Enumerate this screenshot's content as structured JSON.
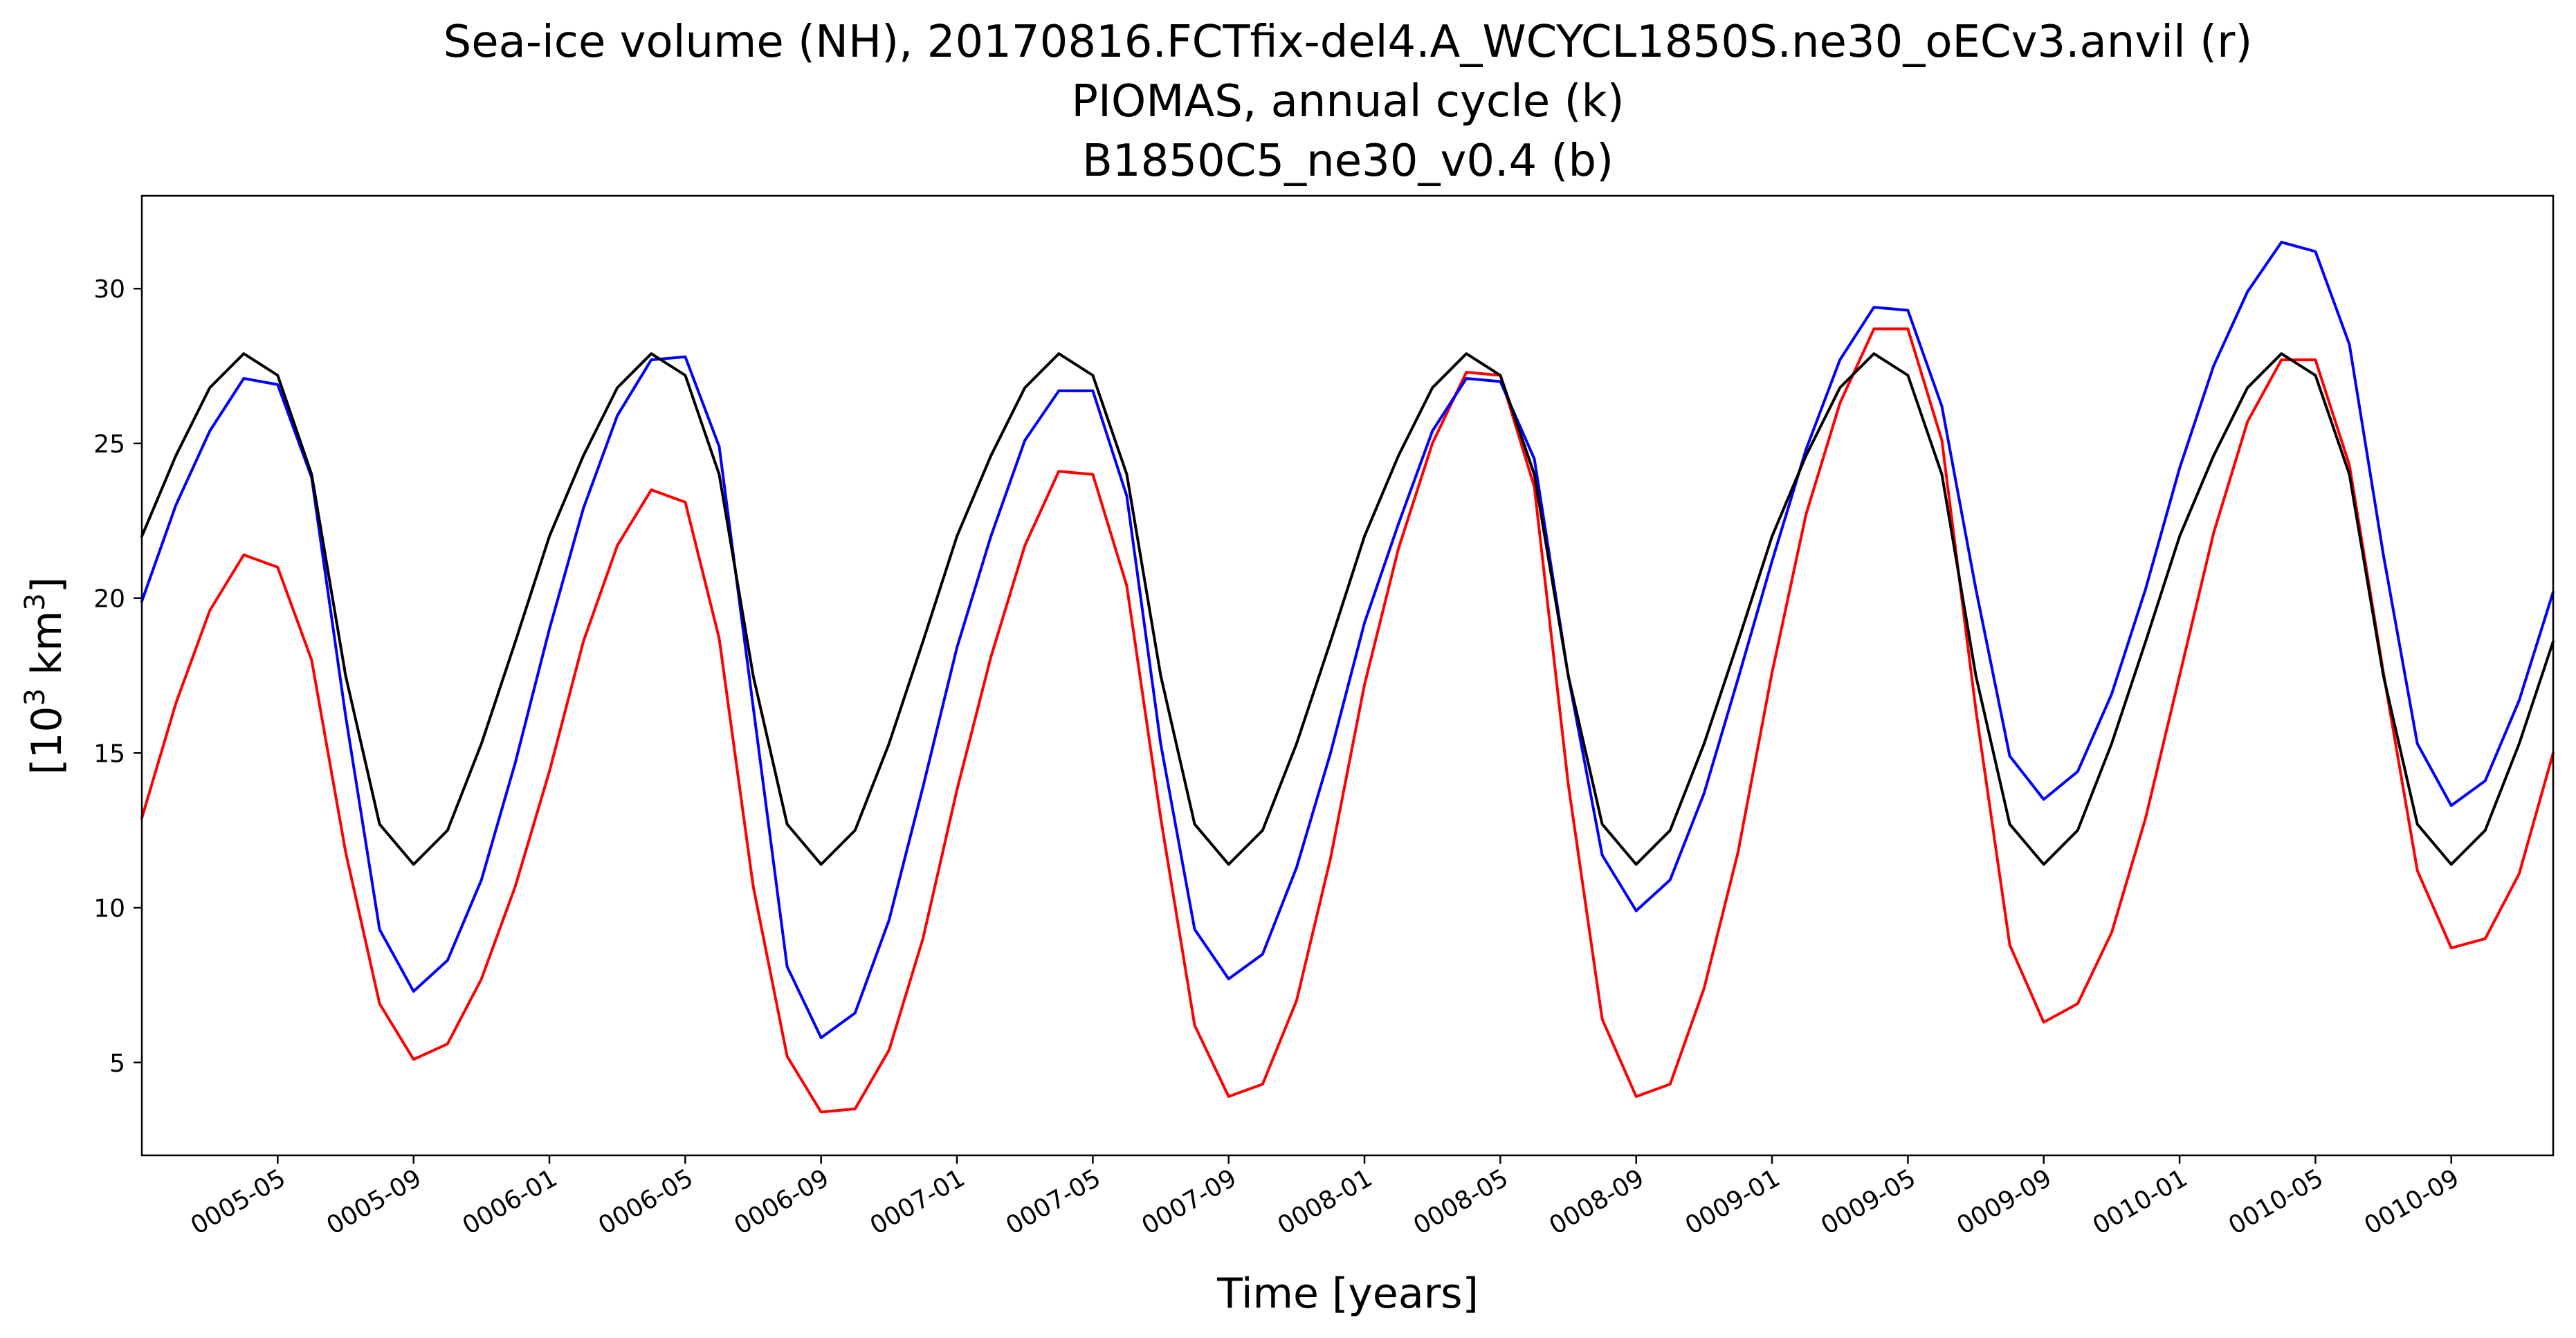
{
  "chart_data": {
    "type": "line",
    "title": "Sea-ice volume (NH), 20170816.FCTfix-del4.A_WCYCL1850S.ne30_oECv3.anvil (r)",
    "subtitle": [
      "PIOMAS, annual cycle (k)",
      "B1850C5_ne30_v0.4 (b)"
    ],
    "xlabel": "Time [years]",
    "ylabel_base": "[10",
    "ylabel_sup1": "3",
    "ylabel_mid": " km",
    "ylabel_sup2": "3",
    "ylabel_end": "]",
    "x_start": "0005-01",
    "xlim": [
      0,
      71
    ],
    "ylim": [
      2,
      33
    ],
    "x_ticks": [
      {
        "x": 4,
        "label": "0005-05"
      },
      {
        "x": 8,
        "label": "0005-09"
      },
      {
        "x": 12,
        "label": "0006-01"
      },
      {
        "x": 16,
        "label": "0006-05"
      },
      {
        "x": 20,
        "label": "0006-09"
      },
      {
        "x": 24,
        "label": "0007-01"
      },
      {
        "x": 28,
        "label": "0007-05"
      },
      {
        "x": 32,
        "label": "0007-09"
      },
      {
        "x": 36,
        "label": "0008-01"
      },
      {
        "x": 40,
        "label": "0008-05"
      },
      {
        "x": 44,
        "label": "0008-09"
      },
      {
        "x": 48,
        "label": "0009-01"
      },
      {
        "x": 52,
        "label": "0009-05"
      },
      {
        "x": 56,
        "label": "0009-09"
      },
      {
        "x": 60,
        "label": "0010-01"
      },
      {
        "x": 64,
        "label": "0010-05"
      },
      {
        "x": 68,
        "label": "0010-09"
      }
    ],
    "y_ticks": [
      {
        "y": 5,
        "label": "5"
      },
      {
        "y": 10,
        "label": "10"
      },
      {
        "y": 15,
        "label": "15"
      },
      {
        "y": 20,
        "label": "20"
      },
      {
        "y": 25,
        "label": "25"
      },
      {
        "y": 30,
        "label": "30"
      }
    ],
    "series": [
      {
        "color": "#ff0000",
        "values": [
          12.9,
          16.6,
          19.6,
          21.4,
          21.0,
          18.0,
          11.8,
          6.9,
          5.1,
          5.6,
          7.7,
          10.7,
          14.4,
          18.6,
          21.7,
          23.5,
          23.1,
          18.7,
          10.7,
          5.2,
          3.4,
          3.5,
          5.4,
          9.0,
          13.8,
          18.1,
          21.7,
          24.1,
          24.0,
          20.4,
          12.9,
          6.2,
          3.9,
          4.3,
          7.0,
          11.6,
          17.2,
          21.6,
          25.0,
          27.3,
          27.2,
          23.6,
          14.0,
          6.4,
          3.9,
          4.3,
          7.4,
          11.8,
          17.6,
          22.7,
          26.3,
          28.7,
          28.7,
          25.1,
          16.4,
          8.8,
          6.3,
          6.9,
          9.2,
          12.9,
          17.5,
          22.1,
          25.7,
          27.7,
          27.7,
          24.3,
          17.6,
          11.2,
          8.7,
          9.0,
          11.1,
          15.0
        ]
      },
      {
        "color": "#0000ff",
        "values": [
          19.9,
          23.0,
          25.4,
          27.1,
          26.9,
          23.9,
          16.2,
          9.3,
          7.3,
          8.3,
          10.9,
          14.7,
          19.0,
          22.9,
          25.9,
          27.7,
          27.8,
          24.9,
          16.5,
          8.1,
          5.8,
          6.6,
          9.6,
          13.9,
          18.4,
          22.0,
          25.1,
          26.7,
          26.7,
          23.3,
          15.3,
          9.3,
          7.7,
          8.5,
          11.3,
          15.0,
          19.2,
          22.4,
          25.4,
          27.1,
          27.0,
          24.5,
          17.5,
          11.7,
          9.9,
          10.9,
          13.7,
          17.4,
          21.2,
          24.8,
          27.7,
          29.4,
          29.3,
          26.2,
          20.3,
          14.9,
          13.5,
          14.4,
          16.9,
          20.3,
          24.2,
          27.5,
          29.9,
          31.5,
          31.2,
          28.2,
          21.4,
          15.3,
          13.3,
          14.1,
          16.7,
          20.2
        ]
      },
      {
        "color": "#000000",
        "values": [
          22.0,
          24.6,
          26.8,
          27.9,
          27.2,
          24.0,
          17.5,
          12.7,
          11.4,
          12.5,
          15.3,
          18.6,
          22.0,
          24.6,
          26.8,
          27.9,
          27.2,
          24.0,
          17.5,
          12.7,
          11.4,
          12.5,
          15.3,
          18.6,
          22.0,
          24.6,
          26.8,
          27.9,
          27.2,
          24.0,
          17.5,
          12.7,
          11.4,
          12.5,
          15.3,
          18.6,
          22.0,
          24.6,
          26.8,
          27.9,
          27.2,
          24.0,
          17.5,
          12.7,
          11.4,
          12.5,
          15.3,
          18.6,
          22.0,
          24.6,
          26.8,
          27.9,
          27.2,
          24.0,
          17.5,
          12.7,
          11.4,
          12.5,
          15.3,
          18.6,
          22.0,
          24.6,
          26.8,
          27.9,
          27.2,
          24.0,
          17.5,
          12.7,
          11.4,
          12.5,
          15.3,
          18.6
        ]
      }
    ]
  }
}
